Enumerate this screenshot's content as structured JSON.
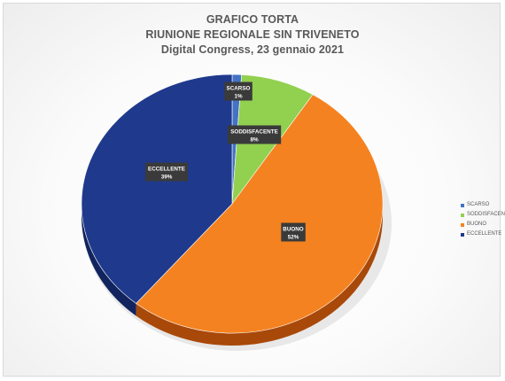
{
  "chart_data": {
    "type": "pie",
    "title_lines": [
      "GRAFICO TORTA",
      "RIUNIONE REGIONALE SIN TRIVENETO",
      "Digital Congress, 23 gennaio 2021"
    ],
    "slices": [
      {
        "label": "SCARSO",
        "value": 1,
        "value_label": "1%",
        "color": "#4472C4"
      },
      {
        "label": "SODDISFACENTE",
        "value": 8,
        "value_label": "8%",
        "color": "#92D050"
      },
      {
        "label": "BUONO",
        "value": 52,
        "value_label": "52%",
        "color": "#F58220"
      },
      {
        "label": "ECCELLENTE",
        "value": 39,
        "value_label": "39%",
        "color": "#1F3A8C"
      }
    ],
    "depth_colors": {
      "BUONO": "#A8490A",
      "ECCELLENTE": "#12245E"
    },
    "style": "3d",
    "legend_position": "right",
    "data_label_style": "dark callout boxes"
  }
}
